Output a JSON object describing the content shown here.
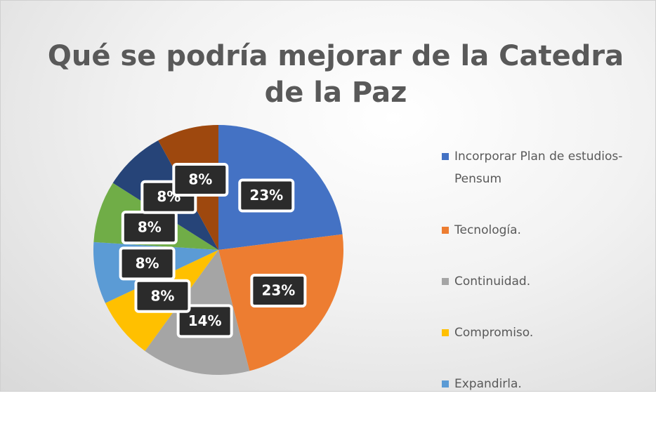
{
  "chart_data": {
    "type": "pie",
    "title": "Qué se podría mejorar de la Catedra de la Paz",
    "categories": [
      "Incorporar Plan de estudios-Pensum",
      "Tecnología.",
      "Continuidad.",
      "Compromiso.",
      "Expandirla.",
      null,
      null,
      null
    ],
    "values": [
      23,
      23,
      14,
      8,
      8,
      8,
      8,
      8
    ],
    "value_labels": [
      "23%",
      "23%",
      "14%",
      "8%",
      "8%",
      "8%",
      "8%",
      "8%"
    ],
    "colors": [
      "#4472c4",
      "#ed7d31",
      "#a5a5a5",
      "#ffc000",
      "#5b9bd5",
      "#70ad47",
      "#264478",
      "#9e480e"
    ],
    "legend": "right"
  }
}
